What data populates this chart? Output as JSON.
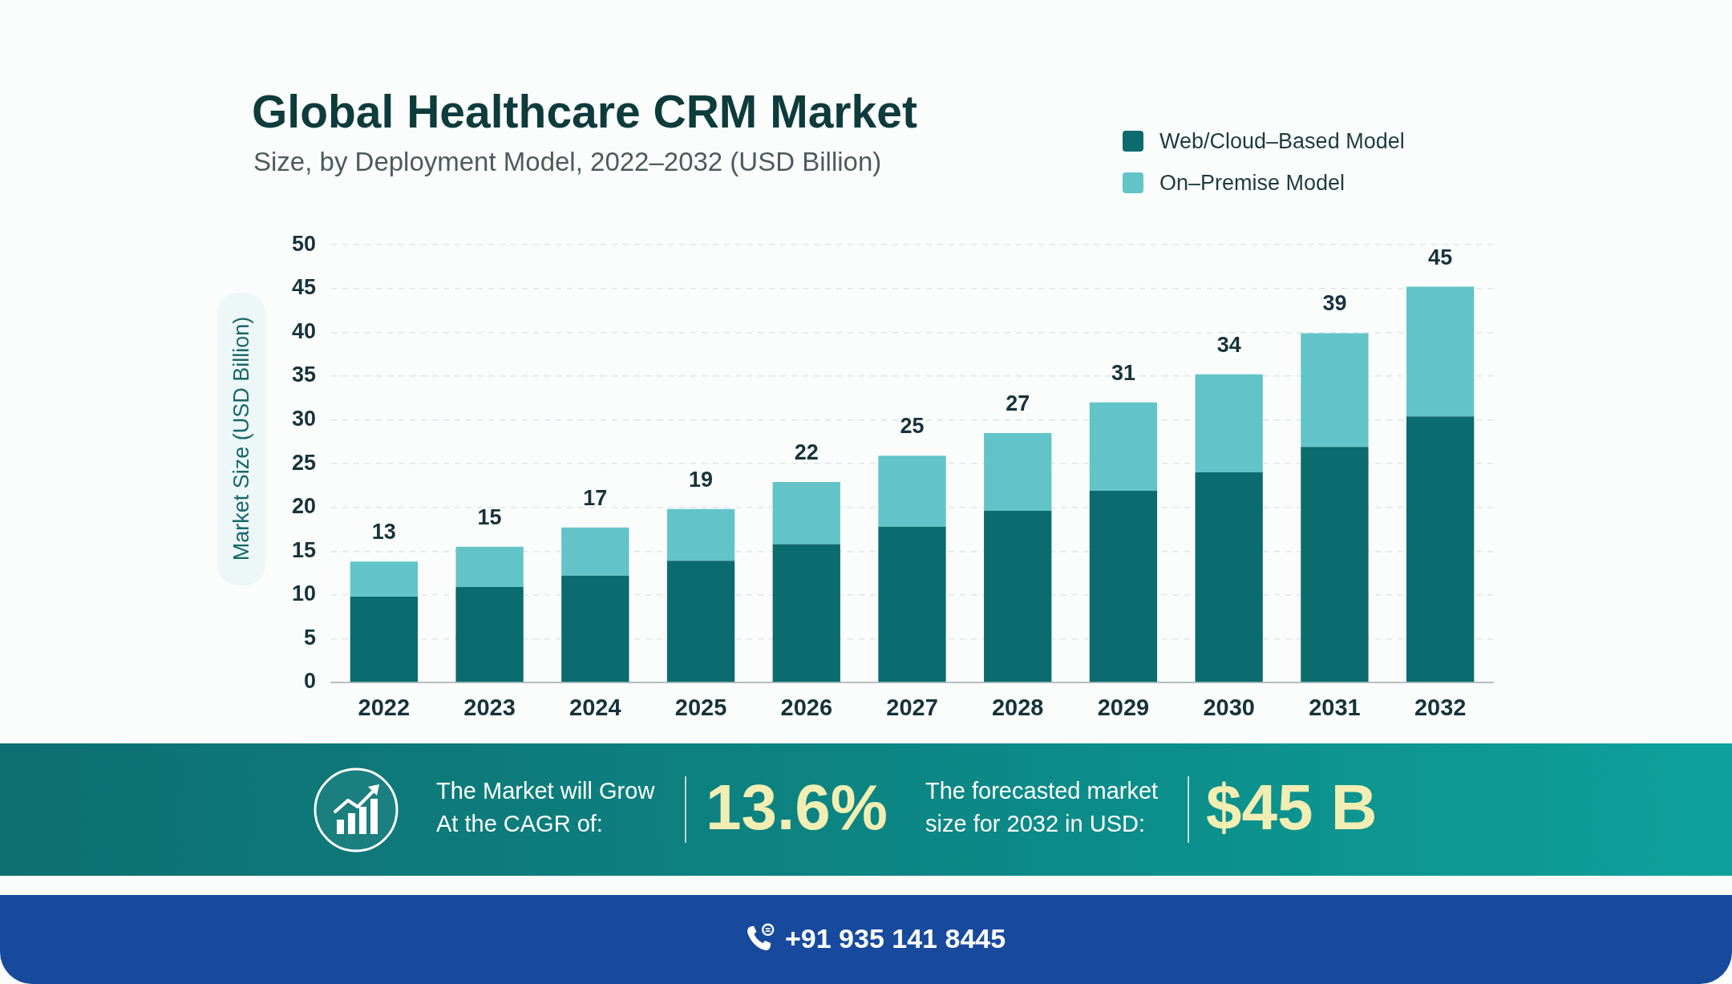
{
  "chart_data": {
    "type": "bar",
    "title": "Global Healthcare CRM Market",
    "subtitle": "Size, by Deployment Model, 2022–2032 (USD Billion)",
    "ylabel": "Market Size (USD Billion)",
    "categories": [
      "2022",
      "2023",
      "2024",
      "2025",
      "2026",
      "2027",
      "2028",
      "2029",
      "2030",
      "2031",
      "2032"
    ],
    "series": [
      {
        "name": "Web/Cloud–Based Model",
        "color": "#0b6b6f",
        "values": [
          9.8,
          10.9,
          12.2,
          13.9,
          15.8,
          17.8,
          19.6,
          21.9,
          24.0,
          26.9,
          30.4
        ]
      },
      {
        "name": "On–Premise Model",
        "color": "#62c4c8",
        "values": [
          4.0,
          4.6,
          5.5,
          5.9,
          7.1,
          8.1,
          8.9,
          10.1,
          11.2,
          13.0,
          14.8
        ]
      }
    ],
    "stacked": true,
    "totals": [
      "13",
      "15",
      "17",
      "19",
      "22",
      "25",
      "27",
      "31",
      "34",
      "39",
      "45"
    ],
    "ylim": [
      0,
      50
    ],
    "yticks": [
      0,
      5,
      10,
      15,
      20,
      25,
      30,
      35,
      40,
      45,
      50
    ],
    "grid": "y",
    "legend": "top right",
    "annotations": [
      "The Market will Grow At the CAGR of:",
      "13.6%",
      "The forecasted market size for 2032 in USD:",
      "$45 B",
      "+91 935 141 8445"
    ]
  }
}
